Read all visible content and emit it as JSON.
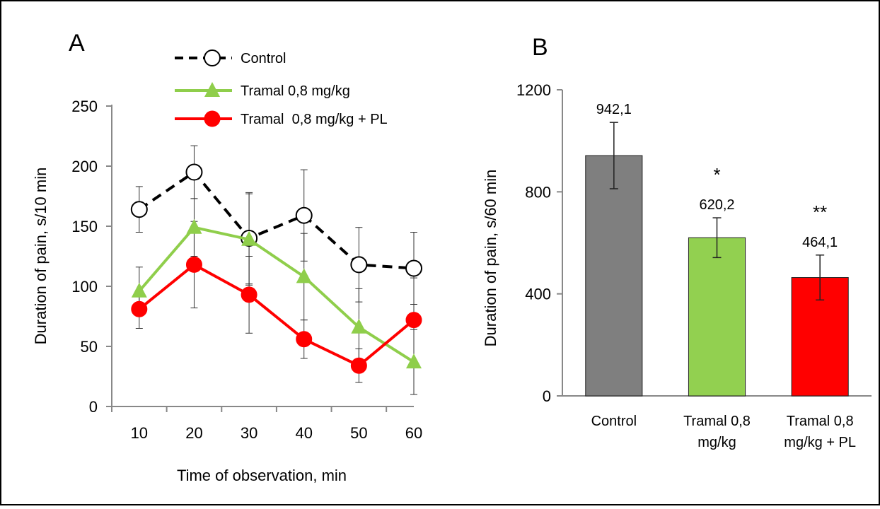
{
  "chart_data": [
    {
      "panel_label": "A",
      "type": "line",
      "xlabel": "Time of observation, min",
      "ylabel": "Duration of pain, s/10 min",
      "ylim": [
        0,
        250
      ],
      "yticks": [
        "0",
        "50",
        "100",
        "150",
        "200",
        "250"
      ],
      "x": [
        10,
        20,
        30,
        40,
        50,
        60
      ],
      "xticks": [
        "10",
        "20",
        "30",
        "40",
        "50",
        "60"
      ],
      "grid": false,
      "legend_position": "top-center",
      "series": [
        {
          "name": "Control",
          "color": "#000000",
          "marker": "open-circle",
          "dashed": true,
          "values": [
            164,
            195,
            140,
            159,
            118,
            115
          ],
          "errors": [
            19,
            22,
            38,
            38,
            31,
            30
          ]
        },
        {
          "name": "Tramal 0,8 mg/kg",
          "color": "#8fce4b",
          "marker": "triangle",
          "dashed": false,
          "values": [
            96,
            149,
            139,
            108,
            66,
            37
          ],
          "errors": [
            20,
            24,
            38,
            36,
            32,
            27
          ]
        },
        {
          "name": "Tramal  0,8 mg/kg + PL",
          "color": "#ff0000",
          "marker": "filled-circle",
          "dashed": false,
          "values": [
            81,
            118,
            93,
            56,
            34,
            72
          ],
          "errors": [
            16,
            36,
            32,
            16,
            14,
            35
          ]
        }
      ]
    },
    {
      "panel_label": "B",
      "type": "bar",
      "ylabel": "Duration of pain, s/60 min",
      "ylim": [
        0,
        1200
      ],
      "yticks": [
        "0",
        "400",
        "800",
        "1200"
      ],
      "categories": [
        {
          "line1": "Control",
          "line2": ""
        },
        {
          "line1": "Tramal 0,8",
          "line2": "mg/kg"
        },
        {
          "line1": "Tramal 0,8",
          "line2": "mg/kg + PL"
        }
      ],
      "values": [
        942.1,
        620.2,
        464.1
      ],
      "value_labels": [
        "942,1",
        "620,2",
        "464,1"
      ],
      "errors": [
        130,
        78,
        88
      ],
      "significance": [
        "",
        "*",
        "**"
      ],
      "colors": [
        "#7f7f7f",
        "#92d050",
        "#ff0000"
      ],
      "grid": false
    }
  ]
}
